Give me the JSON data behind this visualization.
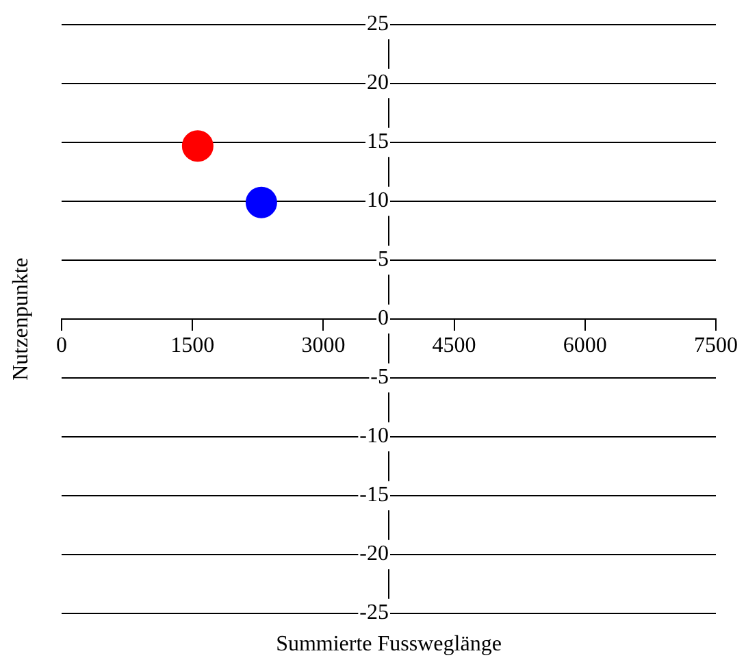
{
  "chart_data": {
    "type": "scatter",
    "xlabel": "Summierte Fussweglänge",
    "ylabel": "Nutzenpunkte",
    "series": [
      {
        "color": "#ff0000",
        "x": [
          1560
        ],
        "values": [
          14.7
        ]
      },
      {
        "color": "#0000ff",
        "x": [
          2290
        ],
        "values": [
          9.9
        ]
      }
    ],
    "xlim": [
      0,
      7500
    ],
    "xticks": [
      0,
      1500,
      3000,
      4500,
      6000,
      7500
    ],
    "ylim": [
      -25,
      25
    ],
    "yticks": [
      -25,
      -20,
      -15,
      -10,
      -5,
      0,
      5,
      10,
      15,
      20,
      25
    ],
    "grid": "y",
    "legend": false,
    "marker": "circle"
  }
}
